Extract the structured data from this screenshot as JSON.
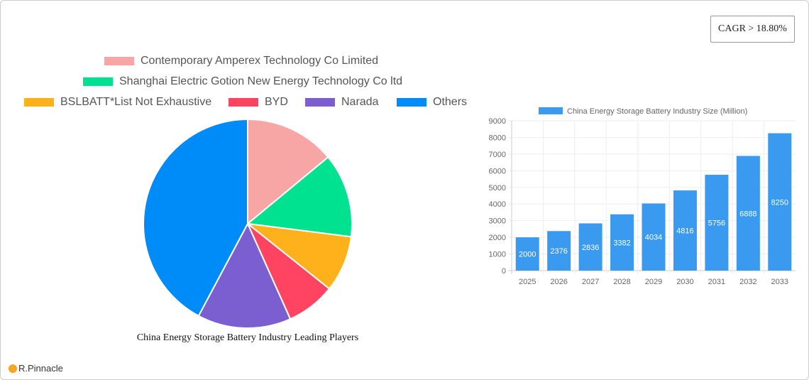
{
  "cagr": "CAGR > 18.80%",
  "logo": "R.Pinnacle",
  "chart_data": [
    {
      "type": "pie",
      "title": "China Energy Storage Battery Industry Leading Players",
      "legend_position": "top",
      "slices": [
        {
          "name": "Contemporary Amperex Technology Co  Limited",
          "value": 14,
          "color": "#f8a5a5"
        },
        {
          "name": "Shanghai Electric Gotion New Energy Technology Co ltd",
          "value": 13,
          "color": "#00e28f"
        },
        {
          "name": "BSLBATT*List Not Exhaustive",
          "value": 8.7,
          "color": "#ffb11b"
        },
        {
          "name": "BYD",
          "value": 7.6,
          "color": "#ff4461"
        },
        {
          "name": "Narada",
          "value": 14.5,
          "color": "#7b5fd0"
        },
        {
          "name": "Others",
          "value": 42.2,
          "color": "#008cf8"
        }
      ]
    },
    {
      "type": "bar",
      "series_name": "China Energy Storage Battery Industry Size (Million)",
      "legend_position": "top",
      "color": "#399af0",
      "grid": true,
      "categories": [
        "2025",
        "2026",
        "2027",
        "2028",
        "2029",
        "2030",
        "2031",
        "2032",
        "2033"
      ],
      "values": [
        2000,
        2376,
        2836,
        3382,
        4034,
        4816,
        5756,
        6888,
        8250
      ],
      "ylim": [
        0,
        9000
      ],
      "yticks": [
        "0",
        "1000",
        "2000",
        "3000",
        "4000",
        "5000",
        "6000",
        "7000",
        "8000",
        "9000"
      ]
    }
  ]
}
